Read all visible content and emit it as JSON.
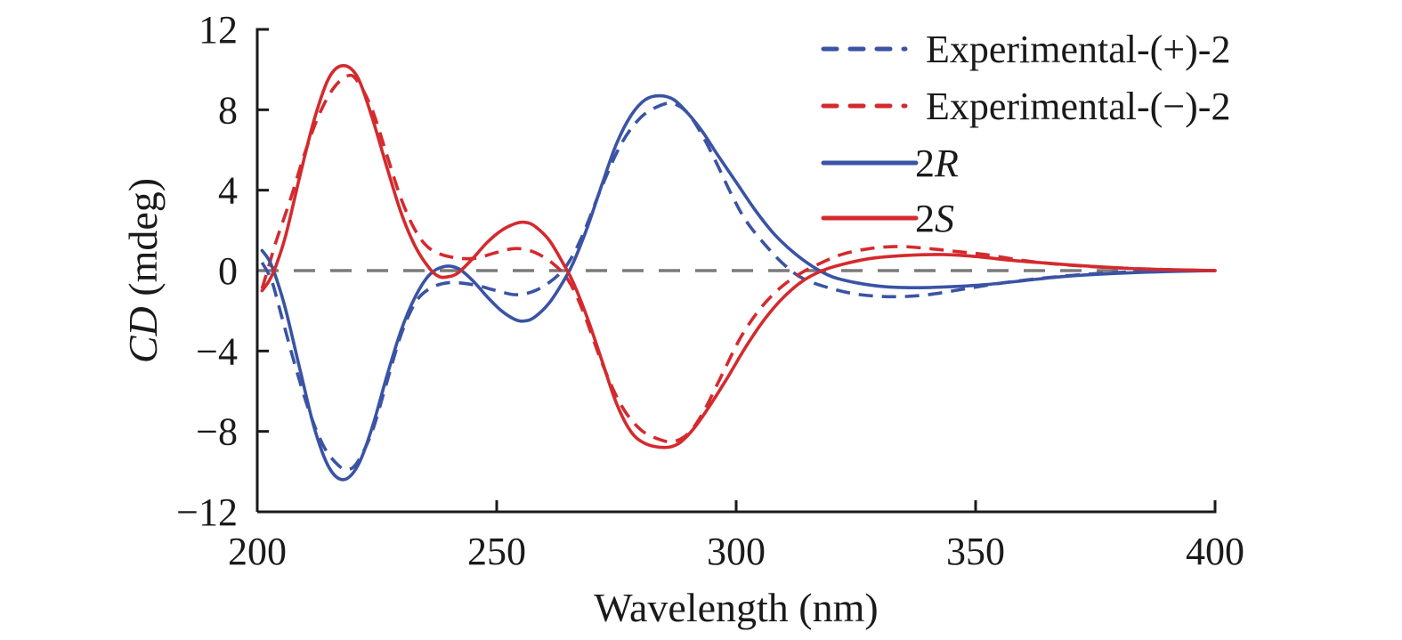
{
  "chart_data": {
    "type": "line",
    "title": "",
    "xlabel": "Wavelength (nm)",
    "ylabel": {
      "italic": "CD",
      "rest": " (mdeg)"
    },
    "xlim": [
      200,
      400
    ],
    "ylim": [
      -12,
      12
    ],
    "xticks": [
      200,
      250,
      300,
      350,
      400
    ],
    "yticks": [
      12,
      8,
      4,
      0,
      -4,
      -8,
      -12
    ],
    "ytick_labels": [
      "12",
      "8",
      "4",
      "0",
      "−4",
      "−8",
      "−12"
    ],
    "grid": false,
    "zero_reference_line": {
      "y": 0,
      "style": "dashed",
      "color": "#7a7a7a"
    },
    "legend_position": "top-right",
    "series": [
      {
        "name": "Experimental-(+)-2",
        "label_main": "Experimental-(+)-2",
        "label_italic": "",
        "color": "#3a53a4",
        "style": "dashed",
        "points": [
          [
            201,
            0.4
          ],
          [
            203,
            -0.5
          ],
          [
            205,
            -2.2
          ],
          [
            208,
            -4.8
          ],
          [
            211,
            -7.1
          ],
          [
            214,
            -8.8
          ],
          [
            217,
            -9.7
          ],
          [
            219,
            -9.9
          ],
          [
            221,
            -9.5
          ],
          [
            224,
            -8.0
          ],
          [
            227,
            -5.6
          ],
          [
            230,
            -3.2
          ],
          [
            233,
            -1.6
          ],
          [
            236,
            -0.9
          ],
          [
            240,
            -0.6
          ],
          [
            245,
            -0.7
          ],
          [
            250,
            -1.0
          ],
          [
            254,
            -1.2
          ],
          [
            258,
            -1.0
          ],
          [
            262,
            -0.4
          ],
          [
            265,
            0.4
          ],
          [
            268,
            1.8
          ],
          [
            272,
            4.2
          ],
          [
            276,
            6.3
          ],
          [
            280,
            7.6
          ],
          [
            284,
            8.2
          ],
          [
            287,
            8.3
          ],
          [
            290,
            7.8
          ],
          [
            293,
            6.7
          ],
          [
            296,
            5.3
          ],
          [
            299,
            3.8
          ],
          [
            302,
            2.5
          ],
          [
            306,
            1.3
          ],
          [
            310,
            0.3
          ],
          [
            314,
            -0.4
          ],
          [
            320,
            -0.9
          ],
          [
            326,
            -1.2
          ],
          [
            333,
            -1.3
          ],
          [
            340,
            -1.2
          ],
          [
            348,
            -0.9
          ],
          [
            356,
            -0.6
          ],
          [
            365,
            -0.35
          ],
          [
            375,
            -0.15
          ],
          [
            385,
            -0.05
          ],
          [
            400,
            0.0
          ]
        ]
      },
      {
        "name": "Experimental-(−)-2",
        "label_main": "Experimental-(−)-2",
        "label_italic": "",
        "color": "#d42a2e",
        "style": "dashed",
        "points": [
          [
            201,
            -0.9
          ],
          [
            202.5,
            0.3
          ],
          [
            204,
            1.5
          ],
          [
            207,
            3.6
          ],
          [
            210,
            5.9
          ],
          [
            213,
            7.8
          ],
          [
            216,
            9.1
          ],
          [
            219,
            9.7
          ],
          [
            221,
            9.4
          ],
          [
            224,
            8.0
          ],
          [
            227,
            5.8
          ],
          [
            230,
            3.6
          ],
          [
            233,
            2.0
          ],
          [
            236,
            1.1
          ],
          [
            240,
            0.7
          ],
          [
            245,
            0.6
          ],
          [
            250,
            0.9
          ],
          [
            254,
            1.1
          ],
          [
            258,
            0.9
          ],
          [
            262,
            0.3
          ],
          [
            265,
            -0.5
          ],
          [
            268,
            -2.0
          ],
          [
            272,
            -4.6
          ],
          [
            276,
            -6.7
          ],
          [
            280,
            -7.9
          ],
          [
            284,
            -8.4
          ],
          [
            287,
            -8.5
          ],
          [
            290,
            -8.1
          ],
          [
            293,
            -7.1
          ],
          [
            297,
            -5.2
          ],
          [
            301,
            -3.3
          ],
          [
            305,
            -1.9
          ],
          [
            309,
            -0.9
          ],
          [
            313,
            -0.2
          ],
          [
            317,
            0.3
          ],
          [
            322,
            0.8
          ],
          [
            328,
            1.1
          ],
          [
            334,
            1.2
          ],
          [
            340,
            1.1
          ],
          [
            346,
            0.95
          ],
          [
            352,
            0.8
          ],
          [
            360,
            0.5
          ],
          [
            368,
            0.3
          ],
          [
            378,
            0.15
          ],
          [
            390,
            0.05
          ],
          [
            400,
            0.0
          ]
        ]
      },
      {
        "name": "2R",
        "label_main": "2",
        "label_italic": "R",
        "color": "#3a53a4",
        "style": "solid",
        "points": [
          [
            201,
            1.0
          ],
          [
            202.5,
            0.5
          ],
          [
            204,
            -0.4
          ],
          [
            206,
            -2.0
          ],
          [
            209,
            -5.0
          ],
          [
            212,
            -7.9
          ],
          [
            215,
            -9.8
          ],
          [
            218,
            -10.4
          ],
          [
            221,
            -9.7
          ],
          [
            224,
            -7.8
          ],
          [
            227,
            -5.3
          ],
          [
            230,
            -3.0
          ],
          [
            233,
            -1.3
          ],
          [
            236,
            -0.2
          ],
          [
            239,
            0.2
          ],
          [
            242,
            0.1
          ],
          [
            245,
            -0.5
          ],
          [
            248,
            -1.3
          ],
          [
            251,
            -2.0
          ],
          [
            254,
            -2.45
          ],
          [
            256,
            -2.5
          ],
          [
            258,
            -2.3
          ],
          [
            261,
            -1.6
          ],
          [
            264,
            -0.5
          ],
          [
            266,
            0.4
          ],
          [
            269,
            2.2
          ],
          [
            272,
            4.3
          ],
          [
            275,
            6.3
          ],
          [
            278,
            7.7
          ],
          [
            281,
            8.5
          ],
          [
            284,
            8.7
          ],
          [
            287,
            8.5
          ],
          [
            290,
            7.8
          ],
          [
            293,
            6.9
          ],
          [
            296,
            5.8
          ],
          [
            300,
            4.4
          ],
          [
            304,
            3.0
          ],
          [
            308,
            1.8
          ],
          [
            312,
            0.9
          ],
          [
            316,
            0.2
          ],
          [
            320,
            -0.3
          ],
          [
            325,
            -0.6
          ],
          [
            331,
            -0.8
          ],
          [
            338,
            -0.85
          ],
          [
            345,
            -0.8
          ],
          [
            352,
            -0.7
          ],
          [
            360,
            -0.5
          ],
          [
            368,
            -0.3
          ],
          [
            378,
            -0.15
          ],
          [
            390,
            -0.05
          ],
          [
            400,
            0.0
          ]
        ]
      },
      {
        "name": "2S",
        "label_main": "2",
        "label_italic": "S",
        "color": "#d42a2e",
        "style": "solid",
        "points": [
          [
            201,
            -1.0
          ],
          [
            202.5,
            -0.5
          ],
          [
            204,
            0.3
          ],
          [
            206,
            1.8
          ],
          [
            209,
            4.8
          ],
          [
            212,
            7.6
          ],
          [
            215,
            9.6
          ],
          [
            218,
            10.2
          ],
          [
            221,
            9.6
          ],
          [
            224,
            7.6
          ],
          [
            227,
            5.2
          ],
          [
            230,
            2.9
          ],
          [
            233,
            1.2
          ],
          [
            236,
            0.1
          ],
          [
            238,
            -0.3
          ],
          [
            240,
            -0.3
          ],
          [
            242,
            -0.1
          ],
          [
            245,
            0.6
          ],
          [
            248,
            1.4
          ],
          [
            251,
            2.0
          ],
          [
            254,
            2.35
          ],
          [
            256,
            2.4
          ],
          [
            258,
            2.2
          ],
          [
            261,
            1.5
          ],
          [
            264,
            0.3
          ],
          [
            266,
            -0.6
          ],
          [
            269,
            -2.4
          ],
          [
            272,
            -4.5
          ],
          [
            275,
            -6.6
          ],
          [
            278,
            -8.0
          ],
          [
            281,
            -8.6
          ],
          [
            285,
            -8.8
          ],
          [
            288,
            -8.6
          ],
          [
            291,
            -7.9
          ],
          [
            294,
            -6.9
          ],
          [
            298,
            -5.4
          ],
          [
            302,
            -3.8
          ],
          [
            306,
            -2.4
          ],
          [
            310,
            -1.3
          ],
          [
            314,
            -0.5
          ],
          [
            318,
            0.0
          ],
          [
            322,
            0.3
          ],
          [
            328,
            0.6
          ],
          [
            335,
            0.75
          ],
          [
            343,
            0.8
          ],
          [
            350,
            0.7
          ],
          [
            358,
            0.5
          ],
          [
            366,
            0.35
          ],
          [
            375,
            0.2
          ],
          [
            385,
            0.08
          ],
          [
            400,
            0.0
          ]
        ]
      }
    ]
  }
}
